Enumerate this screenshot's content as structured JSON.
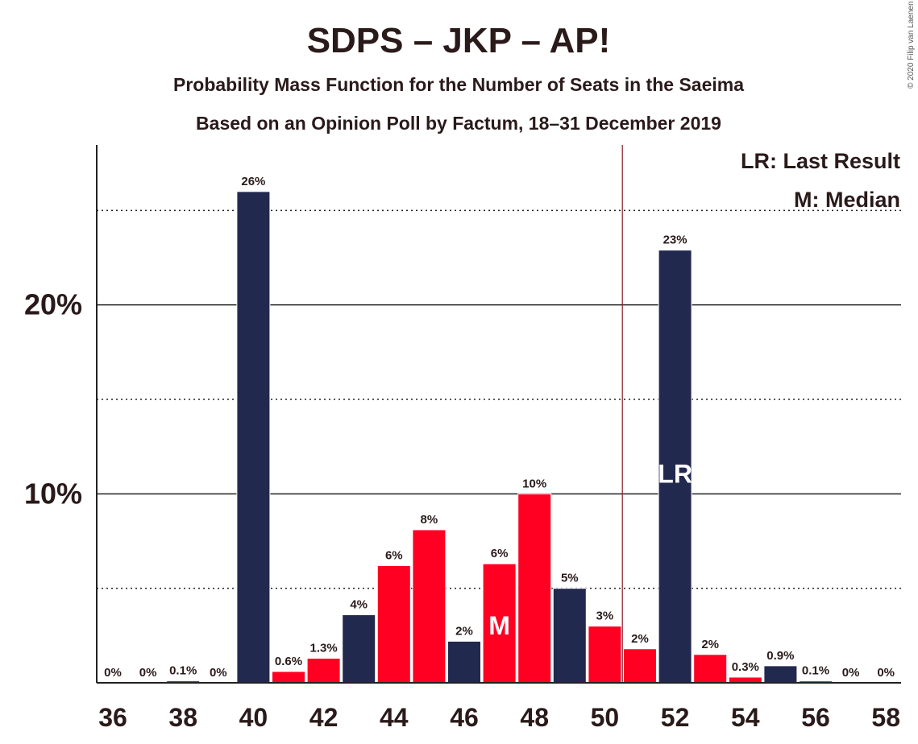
{
  "title": "SDPS – JKP – AP!",
  "subtitle1": "Probability Mass Function for the Number of Seats in the Saeima",
  "subtitle2": "Based on an Opinion Poll by Factum, 18–31 December 2019",
  "copyright": "© 2020 Filip van Laenen",
  "legend": {
    "lr": "LR: Last Result",
    "m": "M: Median"
  },
  "colors": {
    "dark": "#22294f",
    "red": "#ff0022",
    "lastResultLine": "#8b1a2a"
  },
  "chart_data": {
    "type": "bar",
    "x": [
      36,
      37,
      38,
      39,
      40,
      41,
      42,
      43,
      44,
      45,
      46,
      47,
      48,
      49,
      50,
      51,
      52,
      53,
      54,
      55,
      56,
      57,
      58
    ],
    "values": [
      0,
      0,
      0.1,
      0,
      26,
      0.6,
      1.3,
      3.6,
      6.2,
      8.1,
      2.2,
      6.3,
      10.0,
      5.0,
      3.0,
      1.8,
      22.9,
      1.5,
      0.3,
      0.9,
      0.1,
      0,
      0
    ],
    "labels": [
      "0%",
      "0%",
      "0.1%",
      "0%",
      "26%",
      "0.6%",
      "1.3%",
      "4%",
      "6%",
      "8%",
      "2%",
      "6%",
      "10%",
      "5%",
      "3%",
      "2%",
      "23%",
      "2%",
      "0.3%",
      "0.9%",
      "0.1%",
      "0%",
      "0%"
    ],
    "colors": [
      "dark",
      "red",
      "dark",
      "red",
      "dark",
      "red",
      "red",
      "dark",
      "red",
      "red",
      "dark",
      "red",
      "red",
      "dark",
      "red",
      "red",
      "dark",
      "red",
      "red",
      "dark",
      "red",
      "dark",
      "red"
    ],
    "xticks": [
      36,
      38,
      40,
      42,
      44,
      46,
      48,
      50,
      52,
      54,
      56,
      58
    ],
    "xtick_labels": [
      "36",
      "38",
      "40",
      "42",
      "44",
      "46",
      "48",
      "50",
      "52",
      "54",
      "56",
      "58"
    ],
    "yticks": [
      10,
      20
    ],
    "ytick_labels": [
      "10%",
      "20%"
    ],
    "dotted_gridlines": [
      5,
      15,
      25
    ],
    "ylim": [
      0,
      28.5
    ],
    "last_result": 52,
    "last_result_label": "LR",
    "median": 47,
    "median_label": "M",
    "last_result_line_between": [
      50,
      51
    ]
  }
}
